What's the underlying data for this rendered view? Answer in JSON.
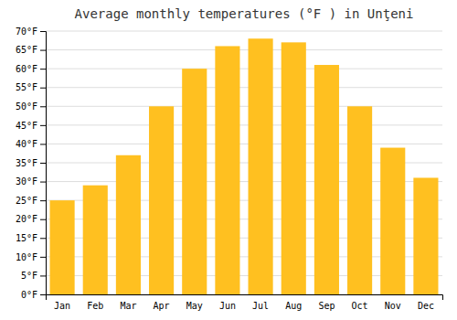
{
  "chart_data": {
    "type": "bar",
    "title": "Average monthly temperatures (°F ) in Unţeni",
    "categories": [
      "Jan",
      "Feb",
      "Mar",
      "Apr",
      "May",
      "Jun",
      "Jul",
      "Aug",
      "Sep",
      "Oct",
      "Nov",
      "Dec"
    ],
    "values": [
      25,
      29,
      37,
      50,
      60,
      66,
      68,
      67,
      61,
      50,
      39,
      31
    ],
    "color": "#FFC020",
    "ylim": [
      0,
      70
    ],
    "yticks": [
      {
        "value": 0,
        "label": "0°F"
      },
      {
        "value": 5,
        "label": "5°F"
      },
      {
        "value": 10,
        "label": "10°F"
      },
      {
        "value": 15,
        "label": "15°F"
      },
      {
        "value": 20,
        "label": "20°F"
      },
      {
        "value": 25,
        "label": "25°F"
      },
      {
        "value": 30,
        "label": "30°F"
      },
      {
        "value": 35,
        "label": "35°F"
      },
      {
        "value": 40,
        "label": "40°F"
      },
      {
        "value": 45,
        "label": "45°F"
      },
      {
        "value": 50,
        "label": "50°F"
      },
      {
        "value": 55,
        "label": "55°F"
      },
      {
        "value": 60,
        "label": "60°F"
      },
      {
        "value": 65,
        "label": "65°F"
      },
      {
        "value": 70,
        "label": "70°F"
      }
    ],
    "grid": true
  }
}
